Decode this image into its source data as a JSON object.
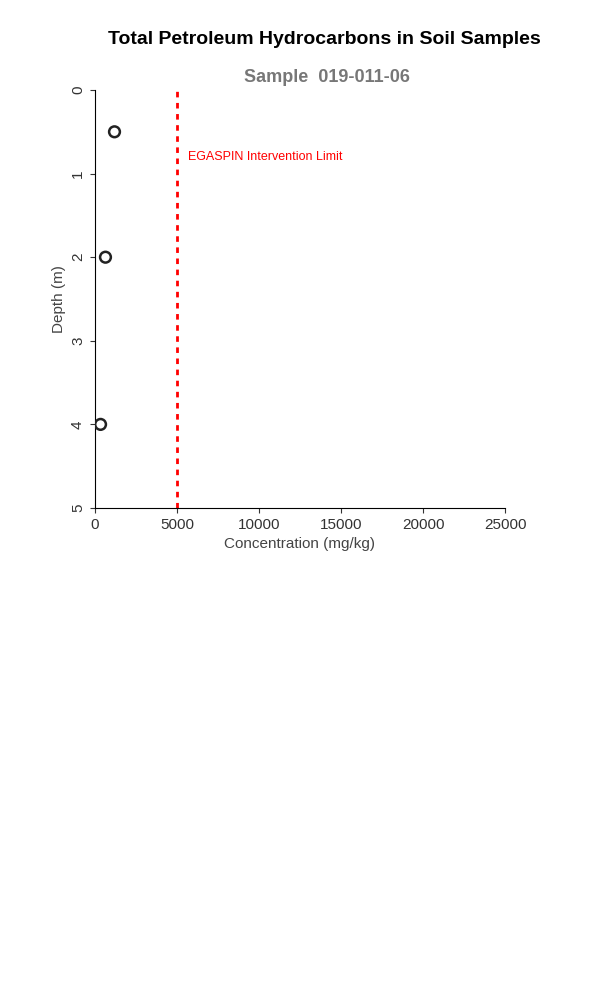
{
  "chart_data": {
    "type": "scatter",
    "title": "Total Petroleum Hydrocarbons in Soil Samples",
    "subtitle": "Sample  019-011-06",
    "x_label": "Concentration (mg/kg)",
    "y_label": "Depth (m)",
    "x": [
      1200,
      650,
      350
    ],
    "values": [
      0.5,
      2.0,
      4.0
    ],
    "color": "#222222",
    "marker": "circle",
    "xlim": [
      0,
      25000
    ],
    "xticks": [
      0,
      5000,
      10000,
      15000,
      20000,
      25000
    ],
    "ylim": [
      5,
      0
    ],
    "yticks": [
      0,
      1,
      2,
      3,
      4,
      5
    ],
    "grid": false,
    "reference_line": {
      "value": 5000,
      "label": "EGASPIN Intervention Limit",
      "color": "#ff0000",
      "line_style": "dashed"
    }
  }
}
